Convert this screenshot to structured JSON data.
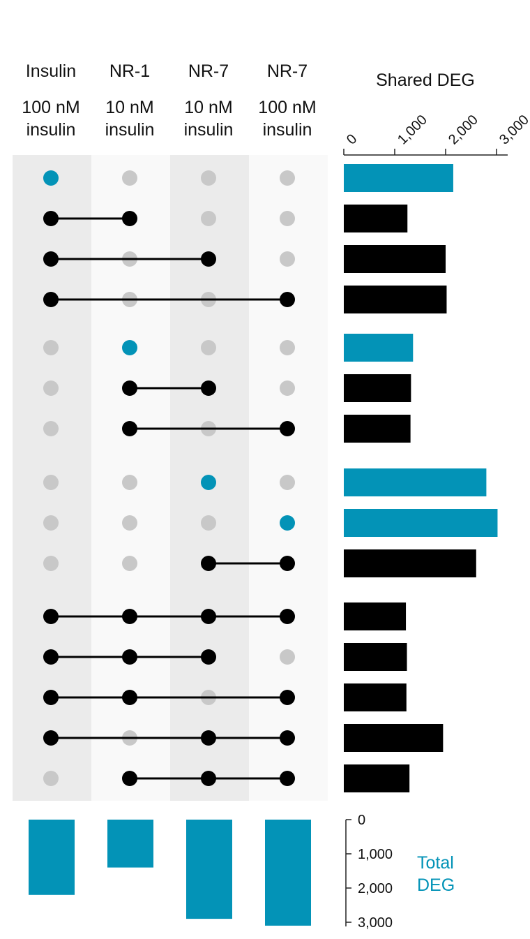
{
  "chart_data": {
    "type": "upset",
    "columns": [
      {
        "name": "Insulin",
        "sub1": "100 nM",
        "sub2": "insulin",
        "total_deg": 2200
      },
      {
        "name": "NR-1",
        "sub1": "10 nM",
        "sub2": "insulin",
        "total_deg": 1400
      },
      {
        "name": "NR-7",
        "sub1": "10 nM",
        "sub2": "insulin",
        "total_deg": 2900
      },
      {
        "name": "NR-7",
        "sub1": "100 nM",
        "sub2": "insulin",
        "total_deg": 3100
      }
    ],
    "intersections": [
      {
        "sets": [
          0
        ],
        "shared_deg": 2150
      },
      {
        "sets": [
          0,
          1
        ],
        "shared_deg": 1250
      },
      {
        "sets": [
          0,
          2
        ],
        "shared_deg": 2000
      },
      {
        "sets": [
          0,
          3
        ],
        "shared_deg": 2020
      },
      {
        "sets": [
          1
        ],
        "shared_deg": 1360
      },
      {
        "sets": [
          1,
          2
        ],
        "shared_deg": 1320
      },
      {
        "sets": [
          1,
          3
        ],
        "shared_deg": 1310
      },
      {
        "sets": [
          2
        ],
        "shared_deg": 2800
      },
      {
        "sets": [
          3
        ],
        "shared_deg": 3020
      },
      {
        "sets": [
          2,
          3
        ],
        "shared_deg": 2600
      },
      {
        "sets": [
          0,
          1,
          2,
          3
        ],
        "shared_deg": 1220
      },
      {
        "sets": [
          0,
          1,
          2
        ],
        "shared_deg": 1240
      },
      {
        "sets": [
          0,
          1,
          3
        ],
        "shared_deg": 1230
      },
      {
        "sets": [
          0,
          2,
          3
        ],
        "shared_deg": 1950
      },
      {
        "sets": [
          1,
          2,
          3
        ],
        "shared_deg": 1290
      }
    ],
    "shared_axis": {
      "title": "Shared DEG",
      "ticks": [
        "0",
        "1,000",
        "2,000",
        "3,000"
      ],
      "range": [
        0,
        3200
      ]
    },
    "total_axis": {
      "title_line1": "Total",
      "title_line2": "DEG",
      "ticks": [
        "0",
        "1,000",
        "2,000",
        "3,000"
      ],
      "range": [
        0,
        3100
      ]
    },
    "colors": {
      "single": "#0393b7",
      "multi": "#000000",
      "inactive": "#c8c8c8",
      "band_dark": "#ebebeb",
      "band_light": "#f9f9f9"
    }
  }
}
